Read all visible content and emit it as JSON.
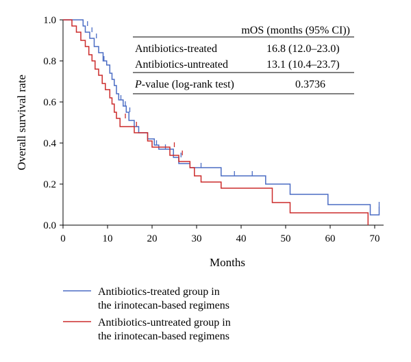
{
  "chart_data": {
    "type": "line",
    "step": true,
    "xlabel": "Months",
    "ylabel": "Overall survival rate",
    "xlim": [
      0,
      72
    ],
    "ylim": [
      0,
      1.0
    ],
    "x_ticks": [
      0,
      10,
      20,
      30,
      40,
      50,
      60,
      70
    ],
    "y_ticks": [
      "0.0",
      "0.2",
      "0.4",
      "0.6",
      "0.8",
      "1.0"
    ],
    "colors": {
      "treated": "#4a6cc4",
      "untreated": "#cc2a2a"
    },
    "series": [
      {
        "name": "Antibiotics-treated group in the irinotecan-based regimens",
        "key": "treated",
        "points": [
          [
            0,
            1.0
          ],
          [
            4.5,
            1.0
          ],
          [
            4.5,
            0.97
          ],
          [
            5,
            0.97
          ],
          [
            5,
            0.94
          ],
          [
            6,
            0.94
          ],
          [
            6,
            0.91
          ],
          [
            7,
            0.91
          ],
          [
            7,
            0.87
          ],
          [
            8,
            0.87
          ],
          [
            8,
            0.84
          ],
          [
            9,
            0.84
          ],
          [
            9,
            0.8
          ],
          [
            9.8,
            0.8
          ],
          [
            9.8,
            0.78
          ],
          [
            10.5,
            0.78
          ],
          [
            10.5,
            0.74
          ],
          [
            11,
            0.74
          ],
          [
            11,
            0.71
          ],
          [
            11.5,
            0.71
          ],
          [
            11.5,
            0.68
          ],
          [
            12,
            0.68
          ],
          [
            12,
            0.64
          ],
          [
            12.5,
            0.64
          ],
          [
            12.5,
            0.61
          ],
          [
            13.5,
            0.61
          ],
          [
            13.5,
            0.58
          ],
          [
            14.2,
            0.58
          ],
          [
            14.2,
            0.55
          ],
          [
            14.8,
            0.55
          ],
          [
            14.8,
            0.51
          ],
          [
            16,
            0.51
          ],
          [
            16,
            0.48
          ],
          [
            17,
            0.48
          ],
          [
            17,
            0.45
          ],
          [
            19,
            0.45
          ],
          [
            19,
            0.42
          ],
          [
            20.5,
            0.42
          ],
          [
            20.5,
            0.39
          ],
          [
            21.5,
            0.39
          ],
          [
            21.5,
            0.37
          ],
          [
            24.8,
            0.37
          ],
          [
            24.8,
            0.33
          ],
          [
            26,
            0.33
          ],
          [
            26,
            0.3
          ],
          [
            28.5,
            0.3
          ],
          [
            28.5,
            0.28
          ],
          [
            35.5,
            0.28
          ],
          [
            35.5,
            0.24
          ],
          [
            45.5,
            0.24
          ],
          [
            45.5,
            0.2
          ],
          [
            51,
            0.2
          ],
          [
            51,
            0.15
          ],
          [
            59.5,
            0.15
          ],
          [
            59.5,
            0.1
          ],
          [
            69,
            0.1
          ],
          [
            69,
            0.05
          ],
          [
            71,
            0.05
          ],
          [
            71,
            0.09
          ]
        ],
        "censored": [
          [
            5.5,
            0.97
          ],
          [
            6.5,
            0.94
          ],
          [
            7.5,
            0.91
          ],
          [
            9.2,
            0.8
          ],
          [
            13,
            0.61
          ],
          [
            14,
            0.58
          ],
          [
            15,
            0.55
          ],
          [
            21,
            0.39
          ],
          [
            23,
            0.37
          ],
          [
            26.5,
            0.33
          ],
          [
            31,
            0.28
          ],
          [
            38.5,
            0.24
          ],
          [
            42.5,
            0.24
          ],
          [
            71,
            0.09
          ]
        ]
      },
      {
        "name": "Antibiotics-untreated group in the irinotecan-based regimens",
        "key": "untreated",
        "points": [
          [
            0,
            1.0
          ],
          [
            2,
            1.0
          ],
          [
            2,
            0.97
          ],
          [
            3,
            0.97
          ],
          [
            3,
            0.94
          ],
          [
            4,
            0.94
          ],
          [
            4,
            0.9
          ],
          [
            5,
            0.9
          ],
          [
            5,
            0.87
          ],
          [
            5.8,
            0.87
          ],
          [
            5.8,
            0.83
          ],
          [
            6.5,
            0.83
          ],
          [
            6.5,
            0.8
          ],
          [
            7.2,
            0.8
          ],
          [
            7.2,
            0.76
          ],
          [
            8,
            0.76
          ],
          [
            8,
            0.73
          ],
          [
            8.8,
            0.73
          ],
          [
            8.8,
            0.69
          ],
          [
            9.5,
            0.69
          ],
          [
            9.5,
            0.66
          ],
          [
            10.5,
            0.66
          ],
          [
            10.5,
            0.62
          ],
          [
            11,
            0.62
          ],
          [
            11,
            0.59
          ],
          [
            11.5,
            0.59
          ],
          [
            11.5,
            0.55
          ],
          [
            12,
            0.55
          ],
          [
            12,
            0.52
          ],
          [
            12.8,
            0.52
          ],
          [
            12.8,
            0.48
          ],
          [
            16,
            0.48
          ],
          [
            16,
            0.45
          ],
          [
            19,
            0.45
          ],
          [
            19,
            0.41
          ],
          [
            20,
            0.41
          ],
          [
            20,
            0.38
          ],
          [
            24,
            0.38
          ],
          [
            24,
            0.34
          ],
          [
            26,
            0.34
          ],
          [
            26,
            0.31
          ],
          [
            28.5,
            0.31
          ],
          [
            28.5,
            0.28
          ],
          [
            29.5,
            0.28
          ],
          [
            29.5,
            0.24
          ],
          [
            31,
            0.24
          ],
          [
            31,
            0.21
          ],
          [
            35.5,
            0.21
          ],
          [
            35.5,
            0.18
          ],
          [
            47,
            0.18
          ],
          [
            47,
            0.11
          ],
          [
            51,
            0.11
          ],
          [
            51,
            0.06
          ],
          [
            68.5,
            0.06
          ],
          [
            68.5,
            0.0
          ]
        ],
        "censored": [
          [
            14,
            0.52
          ],
          [
            16.5,
            0.48
          ],
          [
            25,
            0.38
          ],
          [
            26.8,
            0.34
          ]
        ]
      }
    ],
    "table": {
      "header": "mOS (months (95% CI))",
      "rows": [
        {
          "label": "Antibiotics-treated",
          "value": "16.8 (12.0–23.0)"
        },
        {
          "label": "Antibiotics-untreated",
          "value": "13.1 (10.4–23.7)"
        }
      ],
      "pvalue_label_italic": "P",
      "pvalue_label_rest": "-value (log-rank test)",
      "pvalue": "0.3736"
    },
    "legend": {
      "treated_line1": "Antibiotics-treated group in",
      "treated_line2": "the irinotecan-based regimens",
      "untreated_line1": "Antibiotics-untreated group in",
      "untreated_line2": "the irinotecan-based regimens"
    }
  }
}
